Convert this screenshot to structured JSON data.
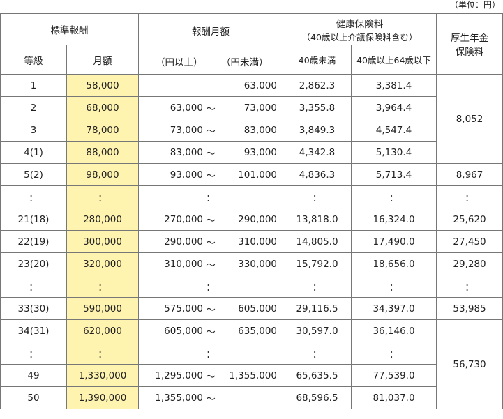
{
  "unit": "（単位：円）",
  "header": {
    "standard": "標準報酬",
    "grade": "等級",
    "monthly": "月額",
    "range": "報酬月額",
    "range_lower": "（円以上）",
    "range_upper": "（円未満）",
    "health": "健康保険料",
    "health_note": "（40歳以上介護保険料含む）",
    "health_under40": "40歳未満",
    "health_40to64": "40歳以上64歳以下",
    "pension": [
      "厚生年金",
      "保険料"
    ]
  },
  "rows": [
    {
      "grade": "1",
      "monthly": "58,000",
      "range": {
        "upper": "63,000"
      },
      "h1": "2,862.3",
      "h2": "3,381.4",
      "pension": "8,052"
    },
    {
      "grade": "2",
      "monthly": "68,000",
      "range": {
        "lower": "63,000",
        "sep": "～",
        "upper": "73,000"
      },
      "h1": "3,355.8",
      "h2": "3,964.4"
    },
    {
      "grade": "3",
      "monthly": "78,000",
      "range": {
        "lower": "73,000",
        "sep": "～",
        "upper": "83,000"
      },
      "h1": "3,849.3",
      "h2": "4,547.4"
    },
    {
      "grade": "4(1)",
      "monthly": "88,000",
      "range": {
        "lower": "83,000",
        "sep": "～",
        "upper": "93,000"
      },
      "h1": "4,342.8",
      "h2": "5,130.4"
    },
    {
      "grade": "5(2)",
      "monthly": "98,000",
      "range": {
        "lower": "93,000",
        "sep": "～",
        "upper": "101,000"
      },
      "h1": "4,836.3",
      "h2": "5,713.4",
      "pension": "8,967"
    },
    {
      "grade": "：",
      "monthly": "：",
      "range": "：",
      "h1": "：",
      "h2": "：",
      "pension": "："
    },
    {
      "grade": "21(18)",
      "monthly": "280,000",
      "range": {
        "lower": "270,000",
        "sep": "～",
        "upper": "290,000"
      },
      "h1": "13,818.0",
      "h2": "16,324.0",
      "pension": "25,620"
    },
    {
      "grade": "22(19)",
      "monthly": "300,000",
      "range": {
        "lower": "290,000",
        "sep": "～",
        "upper": "310,000"
      },
      "h1": "14,805.0",
      "h2": "17,490.0",
      "pension": "27,450"
    },
    {
      "grade": "23(20)",
      "monthly": "320,000",
      "range": {
        "lower": "310,000",
        "sep": "～",
        "upper": "330,000"
      },
      "h1": "15,792.0",
      "h2": "18,656.0",
      "pension": "29,280"
    },
    {
      "grade": "：",
      "monthly": "：",
      "range": "：",
      "h1": "：",
      "h2": "：",
      "pension": "："
    },
    {
      "grade": "33(30)",
      "monthly": "590,000",
      "range": {
        "lower": "575,000",
        "sep": "～",
        "upper": "605,000"
      },
      "h1": "29,116.5",
      "h2": "34,397.0",
      "pension": "53,985"
    },
    {
      "grade": "34(31)",
      "monthly": "620,000",
      "range": {
        "lower": "605,000",
        "sep": "～",
        "upper": "635,000"
      },
      "h1": "30,597.0",
      "h2": "36,146.0",
      "pension": "56,730"
    },
    {
      "grade": "：",
      "monthly": "：",
      "range": "：",
      "h1": "：",
      "h2": "："
    },
    {
      "grade": "49",
      "monthly": "1,330,000",
      "range": {
        "lower": "1,295,000",
        "sep": "～",
        "upper": "1,355,000"
      },
      "h1": "65,635.5",
      "h2": "77,539.0"
    },
    {
      "grade": "50",
      "monthly": "1,390,000",
      "range": {
        "lower": "1,355,000",
        "sep": "～"
      },
      "h1": "68,596.5",
      "h2": "81,037.0"
    }
  ]
}
